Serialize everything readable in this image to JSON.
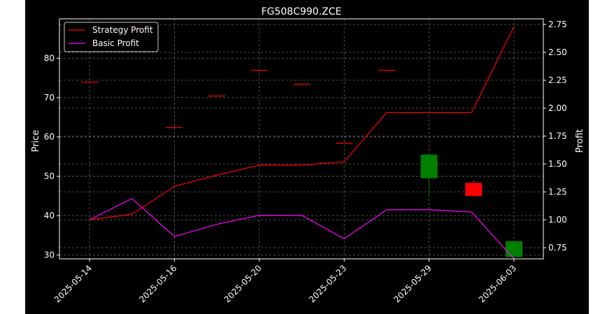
{
  "chart_data": {
    "type": "candlestick-line",
    "title": "FG508C990.ZCE",
    "ylabel_left": "Price",
    "ylabel_right": "Profit",
    "ylim_left": [
      29,
      90
    ],
    "ylim_right": [
      0.65,
      2.8
    ],
    "yticks_left": [
      30,
      40,
      50,
      60,
      70,
      80
    ],
    "yticks_right": [
      0.75,
      1.0,
      1.25,
      1.5,
      1.75,
      2.0,
      2.25,
      2.5,
      2.75
    ],
    "xtick_labels": [
      "2025-05-14",
      "2025-05-16",
      "2025-05-20",
      "2025-05-23",
      "2025-05-29",
      "2025-06-03"
    ],
    "xtick_index": [
      0,
      2,
      4,
      6,
      8,
      10
    ],
    "grid": true,
    "legend_position": "top-left",
    "colors": {
      "up": "#008000",
      "down": "#ff0000",
      "strategy": "#ff0000",
      "basic": "#ff00ff",
      "grid": "#666666",
      "text": "#ffffff",
      "background": "#000000"
    },
    "candles": [
      {
        "x": 0,
        "open": 74.0,
        "high": 74.0,
        "low": 74.0,
        "close": 74.0,
        "dir": "down"
      },
      {
        "x": 1,
        "open": 88.0,
        "high": 88.0,
        "low": 88.0,
        "close": 88.0,
        "dir": "down"
      },
      {
        "x": 2,
        "open": 62.5,
        "high": 62.5,
        "low": 62.5,
        "close": 62.5,
        "dir": "down"
      },
      {
        "x": 3,
        "open": 70.5,
        "high": 70.5,
        "low": 70.5,
        "close": 70.5,
        "dir": "down"
      },
      {
        "x": 4,
        "open": 77.0,
        "high": 77.0,
        "low": 77.0,
        "close": 77.0,
        "dir": "down"
      },
      {
        "x": 5,
        "open": 73.5,
        "high": 73.5,
        "low": 73.5,
        "close": 73.5,
        "dir": "down"
      },
      {
        "x": 6,
        "open": 58.5,
        "high": 58.5,
        "low": 58.5,
        "close": 58.5,
        "dir": "down"
      },
      {
        "x": 7,
        "open": 77.0,
        "high": 77.0,
        "low": 77.0,
        "close": 77.0,
        "dir": "down"
      },
      {
        "x": 8,
        "open": 49.5,
        "high": 55.5,
        "low": 45.0,
        "close": 55.5,
        "dir": "up"
      },
      {
        "x": 9.05,
        "open": 48.3,
        "high": 49.0,
        "low": 44.6,
        "close": 45.0,
        "dir": "down"
      },
      {
        "x": 10,
        "open": 29.5,
        "high": 33.5,
        "low": 29.5,
        "close": 33.5,
        "dir": "up"
      }
    ],
    "series": [
      {
        "name": "Strategy Profit",
        "color": "#ff0000",
        "x": [
          0,
          1,
          2,
          3,
          4,
          5,
          6,
          7,
          8,
          9,
          10
        ],
        "values": [
          1.0,
          1.05,
          1.3,
          1.4,
          1.49,
          1.49,
          1.52,
          1.96,
          1.96,
          1.96,
          2.73
        ]
      },
      {
        "name": "Basic Profit",
        "color": "#ff00ff",
        "x": [
          0,
          1,
          2,
          3,
          4,
          5,
          6,
          7,
          8,
          9,
          10
        ],
        "values": [
          1.0,
          1.19,
          0.85,
          0.96,
          1.04,
          1.04,
          0.83,
          1.09,
          1.09,
          1.07,
          0.65
        ]
      }
    ]
  }
}
